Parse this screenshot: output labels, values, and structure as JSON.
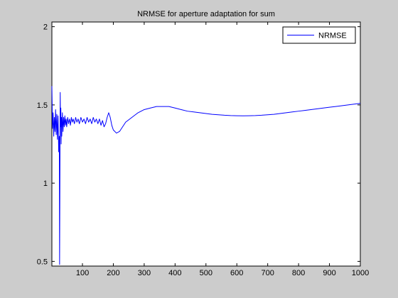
{
  "chart_data": {
    "type": "line",
    "title": "NRMSE for aperture adaptation for sum",
    "xlabel": "",
    "ylabel": "",
    "xlim": [
      1,
      1000
    ],
    "ylim": [
      0.47,
      2.03
    ],
    "x_ticks": [
      100,
      200,
      300,
      400,
      500,
      600,
      700,
      800,
      900,
      1000
    ],
    "x_tick_labels": [
      "100",
      "200",
      "300",
      "400",
      "500",
      "600",
      "700",
      "800",
      "900",
      "1000"
    ],
    "y_ticks": [
      0.5,
      1,
      1.5,
      2
    ],
    "y_tick_labels": [
      "0.5",
      "1",
      "1.5",
      "2"
    ],
    "grid": false,
    "legend_position": "top-right",
    "series": [
      {
        "name": "NRMSE",
        "color": "#0000ff",
        "x": [
          1,
          3,
          5,
          7,
          9,
          11,
          13,
          15,
          17,
          19,
          21,
          23,
          25,
          26,
          27,
          28,
          29,
          30,
          31,
          32,
          33,
          35,
          37,
          39,
          41,
          43,
          45,
          47,
          49,
          52,
          55,
          58,
          61,
          64,
          67,
          70,
          74,
          78,
          82,
          86,
          90,
          95,
          100,
          105,
          110,
          115,
          120,
          125,
          130,
          135,
          140,
          145,
          150,
          155,
          160,
          165,
          170,
          175,
          180,
          185,
          190,
          195,
          200,
          210,
          220,
          230,
          240,
          260,
          280,
          300,
          320,
          340,
          360,
          380,
          400,
          420,
          440,
          460,
          480,
          500,
          520,
          540,
          560,
          580,
          600,
          620,
          640,
          660,
          680,
          700,
          720,
          740,
          760,
          780,
          800,
          820,
          840,
          860,
          880,
          900,
          920,
          940,
          960,
          980,
          1000
        ],
        "y": [
          1.62,
          1.35,
          1.45,
          1.3,
          1.42,
          1.33,
          1.47,
          1.31,
          1.44,
          1.28,
          1.43,
          1.2,
          1.3,
          0.48,
          1.05,
          1.58,
          1.36,
          1.48,
          1.25,
          1.42,
          1.3,
          1.45,
          1.33,
          1.42,
          1.36,
          1.43,
          1.37,
          1.41,
          1.36,
          1.42,
          1.38,
          1.41,
          1.37,
          1.42,
          1.39,
          1.41,
          1.38,
          1.42,
          1.39,
          1.41,
          1.38,
          1.42,
          1.39,
          1.41,
          1.38,
          1.42,
          1.39,
          1.41,
          1.38,
          1.42,
          1.39,
          1.41,
          1.38,
          1.41,
          1.37,
          1.4,
          1.36,
          1.38,
          1.42,
          1.45,
          1.42,
          1.37,
          1.34,
          1.32,
          1.33,
          1.36,
          1.39,
          1.42,
          1.45,
          1.47,
          1.48,
          1.49,
          1.49,
          1.49,
          1.48,
          1.47,
          1.46,
          1.455,
          1.45,
          1.445,
          1.44,
          1.437,
          1.434,
          1.432,
          1.431,
          1.43,
          1.431,
          1.432,
          1.434,
          1.437,
          1.44,
          1.445,
          1.45,
          1.455,
          1.46,
          1.465,
          1.47,
          1.475,
          1.48,
          1.485,
          1.49,
          1.495,
          1.5,
          1.505,
          1.51
        ]
      }
    ]
  }
}
